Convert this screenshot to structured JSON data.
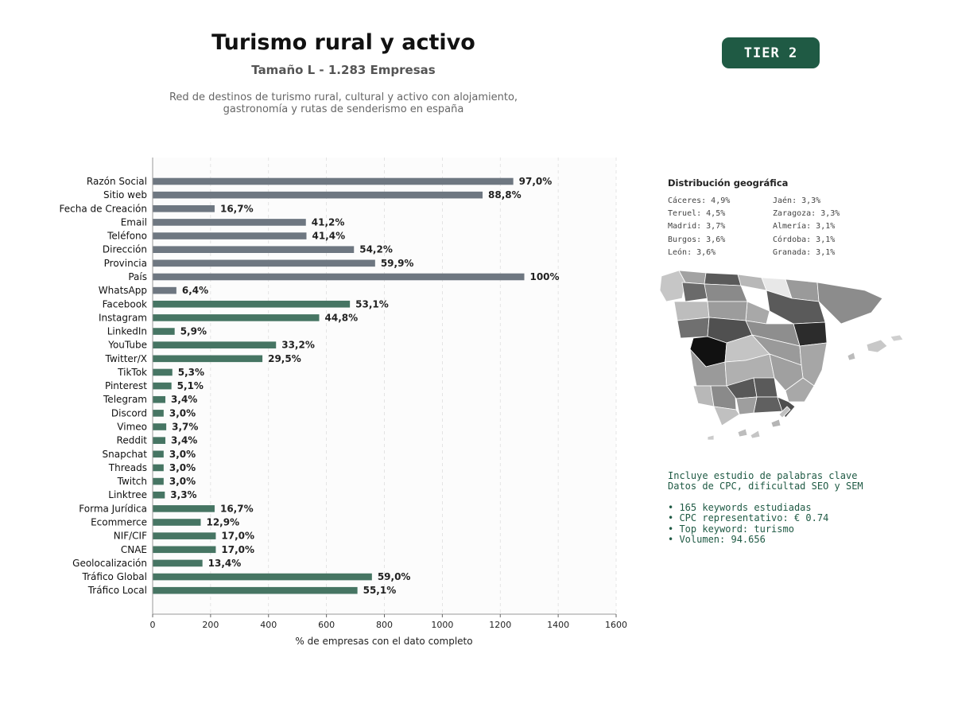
{
  "header": {
    "title": "Turismo rural y activo",
    "subtitle": "Tamaño L - 1.283 Empresas",
    "description_line1": "Red de destinos de turismo rural, cultural y activo con alojamiento,",
    "description_line2": "gastronomía y rutas de senderismo en españa",
    "tier_badge": "TIER 2"
  },
  "chart_data": {
    "type": "bar",
    "orientation": "horizontal",
    "xlabel": "% de empresas con el dato completo",
    "xlim": [
      0,
      1600
    ],
    "xticks": [
      0,
      200,
      400,
      600,
      800,
      1000,
      1200,
      1400,
      1600
    ],
    "grid": "vertical dashed",
    "colors": {
      "basic": "#6e7781",
      "social": "#467563"
    },
    "categories": [
      "Razón Social",
      "Sitio web",
      "Fecha de Creación",
      "Email",
      "Teléfono",
      "Dirección",
      "Provincia",
      "País",
      "WhatsApp",
      "Facebook",
      "Instagram",
      "LinkedIn",
      "YouTube",
      "Twitter/X",
      "TikTok",
      "Pinterest",
      "Telegram",
      "Discord",
      "Vimeo",
      "Reddit",
      "Snapchat",
      "Threads",
      "Twitch",
      "Linktree",
      "Forma Jurídica",
      "Ecommerce",
      "NIF/CIF",
      "CNAE",
      "Geolocalización",
      "Tráfico Global",
      "Tráfico Local"
    ],
    "values": [
      1245,
      1139,
      214,
      529,
      531,
      695,
      768,
      1283,
      82,
      681,
      575,
      76,
      426,
      379,
      68,
      65,
      44,
      38,
      47,
      44,
      38,
      38,
      38,
      42,
      214,
      166,
      218,
      218,
      172,
      757,
      707
    ],
    "labels": [
      "97,0%",
      "88,8%",
      "16,7%",
      "41,2%",
      "41,4%",
      "54,2%",
      "59,9%",
      "100%",
      "6,4%",
      "53,1%",
      "44,8%",
      "5,9%",
      "33,2%",
      "29,5%",
      "5,3%",
      "5,1%",
      "3,4%",
      "3,0%",
      "3,7%",
      "3,4%",
      "3,0%",
      "3,0%",
      "3,0%",
      "3,3%",
      "16,7%",
      "12,9%",
      "17,0%",
      "17,0%",
      "13,4%",
      "59,0%",
      "55,1%"
    ],
    "groups": [
      "basic",
      "basic",
      "basic",
      "basic",
      "basic",
      "basic",
      "basic",
      "basic",
      "basic",
      "social",
      "social",
      "social",
      "social",
      "social",
      "social",
      "social",
      "social",
      "social",
      "social",
      "social",
      "social",
      "social",
      "social",
      "social",
      "social",
      "social",
      "social",
      "social",
      "social",
      "social",
      "social"
    ]
  },
  "geo": {
    "title": "Distribución geográfica",
    "items": [
      "Cáceres: 4,9%",
      "Jaén: 3,3%",
      "Teruel: 4,5%",
      "Zaragoza: 3,3%",
      "Madrid: 3,7%",
      "Almería: 3,1%",
      "Burgos: 3,6%",
      "Córdoba: 3,1%",
      "León: 3,6%",
      "Granada: 3,1%"
    ]
  },
  "keywords": {
    "line1": "Incluye estudio de palabras clave",
    "line2": "Datos de CPC, dificultad SEO y SEM",
    "bullets": [
      "• 165 keywords estudiadas",
      "• CPC representativo: € 0.74",
      "• Top keyword: turismo",
      "• Volumen: 94.656"
    ]
  }
}
